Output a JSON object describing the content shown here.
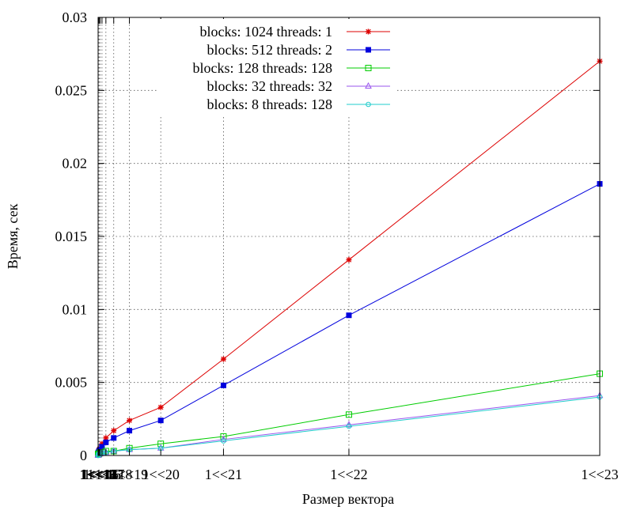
{
  "chart_data": {
    "type": "line",
    "xlabel": "Размер вектора",
    "ylabel": "Время, сек",
    "grid": true,
    "legend_position": "top-center",
    "xlim": [
      1024,
      8388608
    ],
    "ylim": [
      0,
      0.03
    ],
    "x_tick_labels": [
      "1<<10",
      "1<<11",
      "1<<12",
      "1<<13",
      "1<<14",
      "1<<15",
      "1<<16",
      "1<<17",
      "1<<18",
      "1<<19",
      "1<<20",
      "1<<21",
      "1<<22",
      "1<<23"
    ],
    "y_ticks": [
      0,
      0.005,
      0.01,
      0.015,
      0.02,
      0.025,
      0.03
    ],
    "y_tick_labels": [
      "0",
      "0.005",
      "0.01",
      "0.015",
      "0.02",
      "0.025",
      "0.03"
    ],
    "x": [
      1024,
      2048,
      4096,
      8192,
      16384,
      32768,
      65536,
      131072,
      262144,
      524288,
      1048576,
      2097152,
      4194304,
      8388608
    ],
    "series": [
      {
        "name": "blocks: 1024 threads: 1",
        "color": "#dd0000",
        "marker": "star",
        "values": [
          0.0001,
          0.0002,
          0.0002,
          0.0003,
          0.0004,
          0.0005,
          0.0008,
          0.0012,
          0.0017,
          0.0024,
          0.0033,
          0.0066,
          0.0134,
          0.027
        ]
      },
      {
        "name": "blocks: 512 threads: 2",
        "color": "#0000dd",
        "marker": "filled-square",
        "values": [
          0.0001,
          0.0001,
          0.0002,
          0.0002,
          0.0003,
          0.0004,
          0.0006,
          0.0009,
          0.0012,
          0.0017,
          0.0024,
          0.0048,
          0.0096,
          0.0186
        ]
      },
      {
        "name": "blocks: 128 threads: 128",
        "color": "#00cc00",
        "marker": "open-square",
        "values": [
          0.0001,
          0.0001,
          0.0001,
          0.0001,
          0.0001,
          0.0002,
          0.0002,
          0.0003,
          0.0003,
          0.0005,
          0.0008,
          0.0013,
          0.0028,
          0.0056
        ]
      },
      {
        "name": "blocks: 32 threads: 32",
        "color": "#9955ee",
        "marker": "open-triangle",
        "values": [
          0.0,
          0.0,
          0.0001,
          0.0001,
          0.0001,
          0.0001,
          0.0002,
          0.0002,
          0.0003,
          0.0004,
          0.0005,
          0.0011,
          0.0021,
          0.0041
        ]
      },
      {
        "name": "blocks: 8 threads: 128",
        "color": "#22cccc",
        "marker": "open-circle",
        "values": [
          0.0,
          0.0,
          0.0001,
          0.0001,
          0.0001,
          0.0001,
          0.0002,
          0.0002,
          0.0003,
          0.0004,
          0.0005,
          0.001,
          0.002,
          0.004
        ]
      }
    ]
  }
}
